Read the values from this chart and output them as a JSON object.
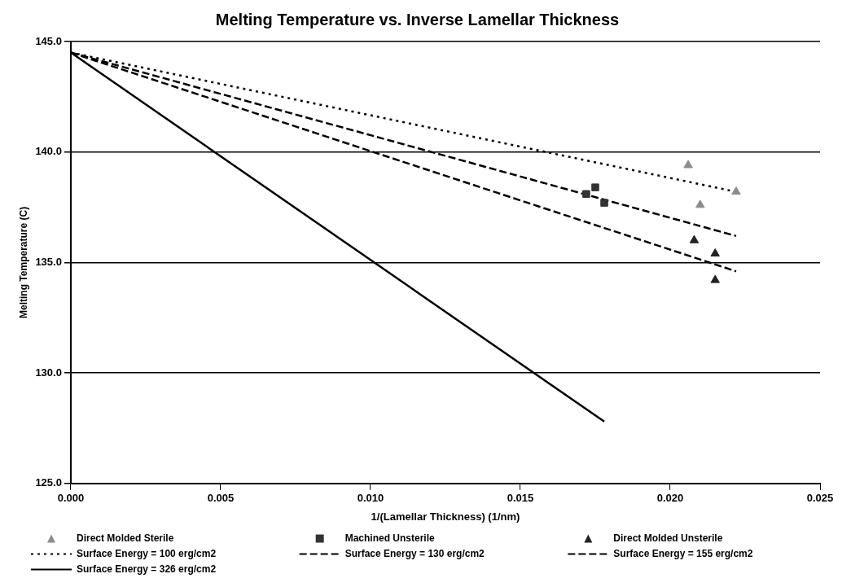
{
  "chart_data": {
    "type": "scatter",
    "title": "Melting Temperature vs. Inverse Lamellar Thickness",
    "xlabel": "1/(Lamellar Thickness) (1/nm)",
    "ylabel": "Melting Temperature (C)",
    "xlim": [
      0,
      0.025
    ],
    "xticks": [
      {
        "value": 0,
        "label": "0.000"
      },
      {
        "value": 0.005,
        "label": "0.005"
      },
      {
        "value": 0.01,
        "label": "0.010"
      },
      {
        "value": 0.015,
        "label": "0.015"
      },
      {
        "value": 0.02,
        "label": "0.020"
      },
      {
        "value": 0.025,
        "label": "0.025"
      }
    ],
    "ylim": [
      125,
      145
    ],
    "yticks": [
      {
        "value": 125,
        "label": "125.0"
      },
      {
        "value": 130,
        "label": "130.0"
      },
      {
        "value": 135,
        "label": "135.0"
      },
      {
        "value": 140,
        "label": "140.0"
      },
      {
        "value": 145,
        "label": "145.0"
      }
    ],
    "grid": "y",
    "legend": "bottom",
    "series": [
      {
        "name": "Direct Molded Sterile",
        "marker": "triangle",
        "color": "#8c8c8c",
        "x": [
          0.0206,
          0.021,
          0.0222
        ],
        "values": [
          139.4,
          137.6,
          138.2
        ]
      },
      {
        "name": "Machined Unsterile",
        "marker": "square",
        "color": "#333333",
        "x": [
          0.0172,
          0.0175,
          0.0178
        ],
        "values": [
          138.1,
          138.4,
          137.7
        ]
      },
      {
        "name": "Direct Molded Unsterile",
        "marker": "triangle",
        "color": "#222222",
        "x": [
          0.0208,
          0.0215,
          0.0215
        ],
        "values": [
          136.0,
          135.4,
          134.2
        ]
      },
      {
        "name": "Surface Energy = 100 erg/cm2",
        "type": "line",
        "line_style": "dotted",
        "color": "#000000",
        "x": [
          0,
          0.0222
        ],
        "values": [
          144.5,
          138.2
        ]
      },
      {
        "name": "Surface Energy = 130 erg/cm2",
        "type": "line",
        "line_style": "dashed",
        "color": "#000000",
        "x": [
          0,
          0.0222
        ],
        "values": [
          144.5,
          136.2
        ]
      },
      {
        "name": "Surface Energy = 155 erg/cm2",
        "type": "line",
        "line_style": "dashed",
        "color": "#000000",
        "x": [
          0,
          0.0222
        ],
        "values": [
          144.5,
          134.6
        ]
      },
      {
        "name": "Surface Energy = 326 erg/cm2",
        "type": "line",
        "line_style": "solid",
        "color": "#000000",
        "x": [
          0,
          0.0178
        ],
        "values": [
          144.5,
          127.8
        ]
      }
    ]
  }
}
